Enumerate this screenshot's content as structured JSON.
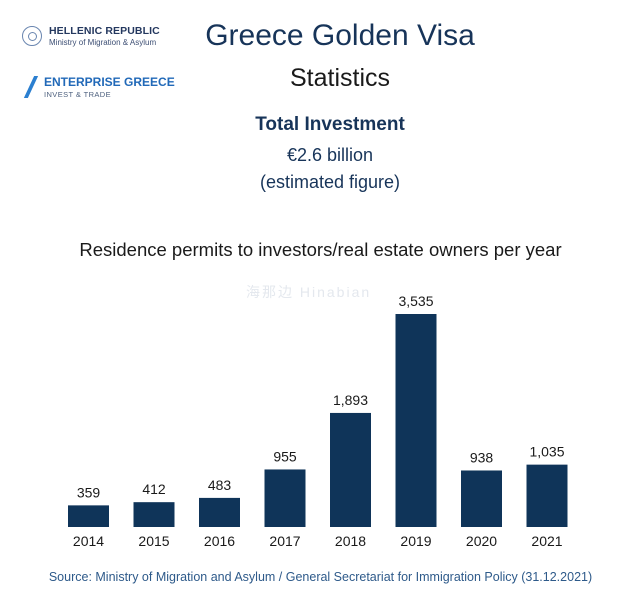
{
  "logos": {
    "hellenic": {
      "title": "HELLENIC REPUBLIC",
      "subtitle": "Ministry of Migration & Asylum",
      "icon": "seal-icon"
    },
    "enterprise": {
      "title": "ENTERPRISE GREECE",
      "subtitle": "INVEST & TRADE",
      "icon": "enterprise-greece-mark-icon"
    }
  },
  "header": {
    "title": "Greece Golden Visa",
    "subtitle": "Statistics"
  },
  "investment": {
    "title": "Total Investment",
    "value": "€2.6 billion",
    "note": "(estimated figure)"
  },
  "chart_data": {
    "type": "bar",
    "title": "Residence permits to investors/real estate owners per year",
    "categories": [
      "2014",
      "2015",
      "2016",
      "2017",
      "2018",
      "2019",
      "2020",
      "2021"
    ],
    "values": [
      359,
      412,
      483,
      955,
      1893,
      3535,
      938,
      1035
    ],
    "value_labels": [
      "359",
      "412",
      "483",
      "955",
      "1,893",
      "3,535",
      "938",
      "1,035"
    ],
    "bar_color": "#0f3459",
    "ylim": [
      0,
      3535
    ],
    "grid": false,
    "xlabel": "",
    "ylabel": ""
  },
  "watermark": "海那边 Hinabian",
  "source": "Source: Ministry of Migration and Asylum / General Secretariat for Immigration Policy (31.12.2021)"
}
